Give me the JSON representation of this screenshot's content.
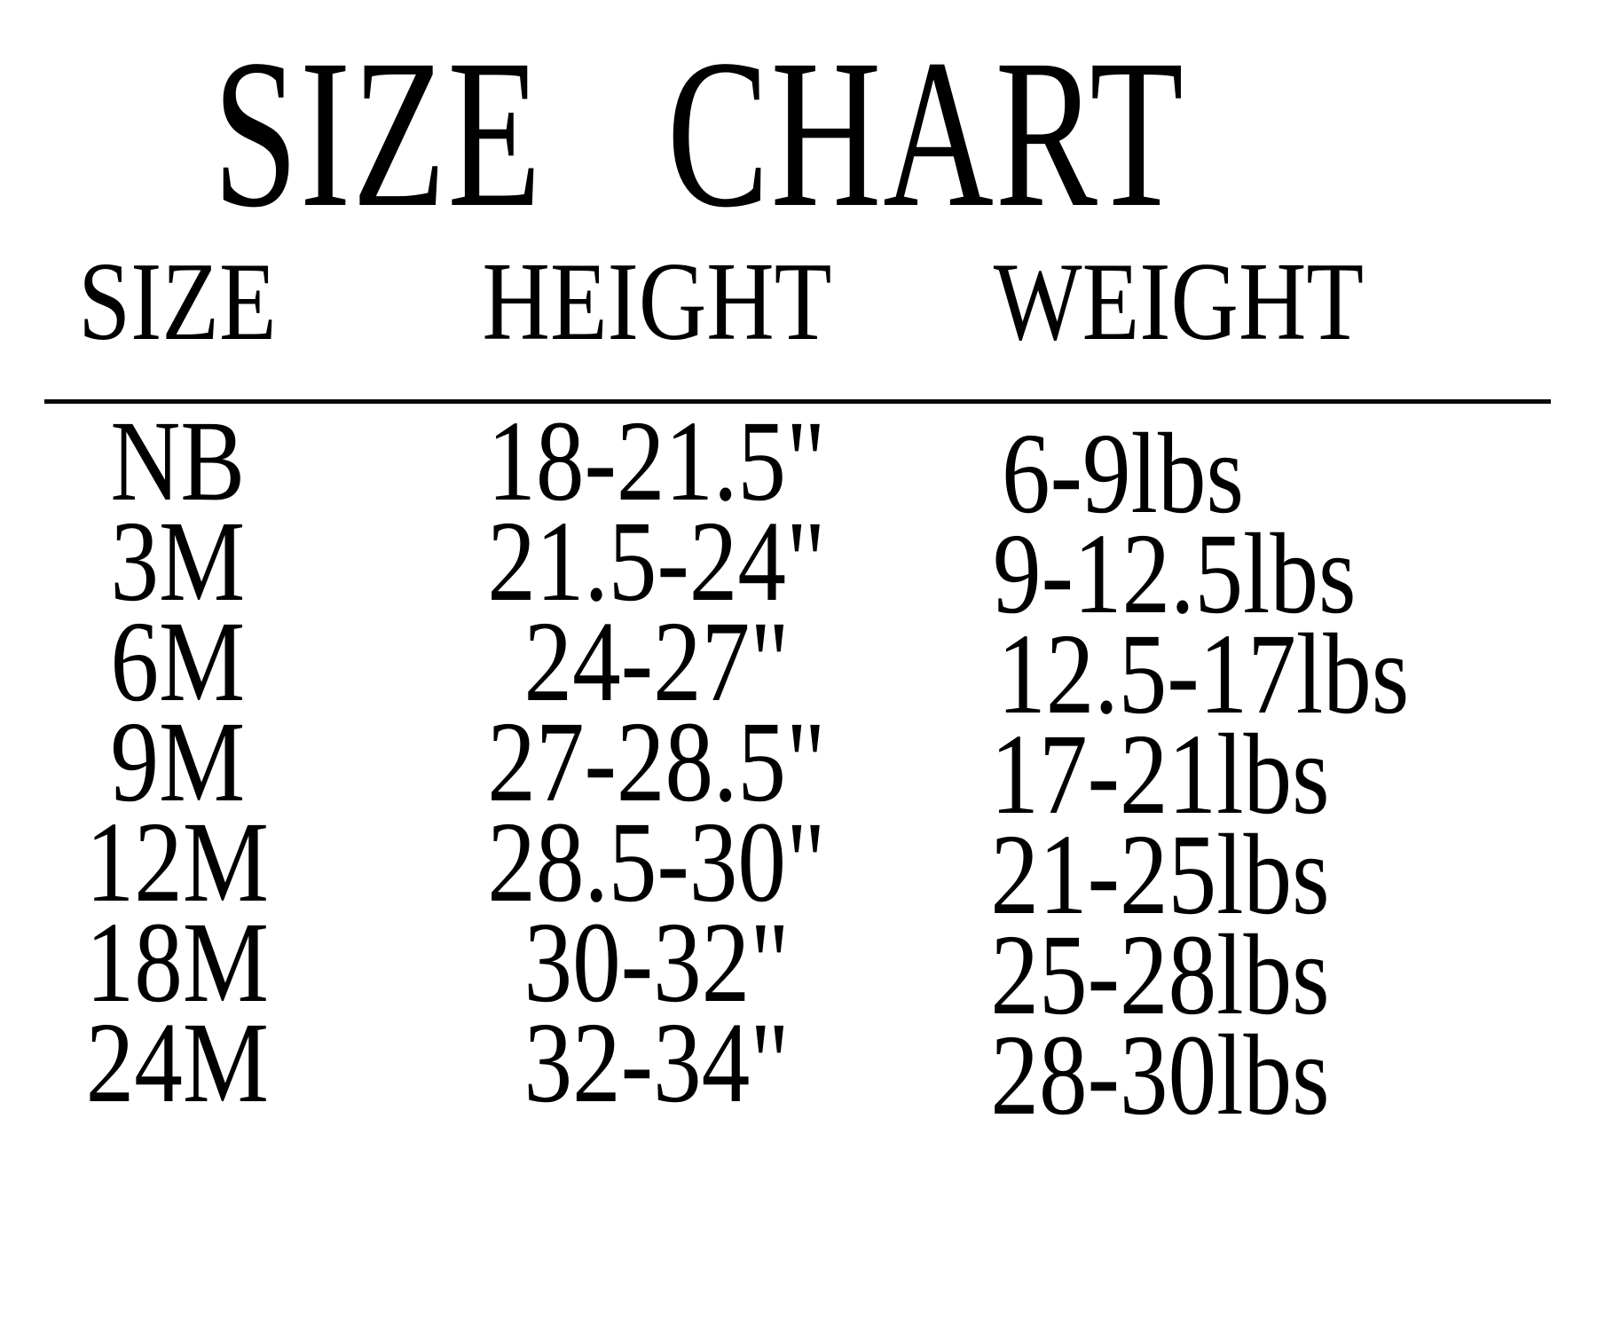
{
  "page": {
    "background_color": "#ffffff",
    "text_color": "#000000",
    "rule_color": "#0a0a0a"
  },
  "chart_data": {
    "type": "table",
    "title": "SIZE CHART",
    "columns": [
      "SIZE",
      "HEIGHT",
      "WEIGHT"
    ],
    "rows": [
      [
        "NB",
        "18-21.5\"",
        "6-9lbs"
      ],
      [
        "3M",
        "21.5-24\"",
        "9-12.5lbs"
      ],
      [
        "6M",
        "24-27\"",
        "12.5-17lbs"
      ],
      [
        "9M",
        "27-28.5\"",
        "17-21lbs"
      ],
      [
        "12M",
        "28.5-30\"",
        "21-25lbs"
      ],
      [
        "18M",
        "30-32\"",
        "25-28lbs"
      ],
      [
        "24M",
        "32-34\"",
        "28-30lbs"
      ]
    ],
    "height_unit": "inches",
    "weight_unit": "lbs",
    "layout": {
      "grid": false,
      "header_divider": true,
      "columns_centered": true
    }
  }
}
